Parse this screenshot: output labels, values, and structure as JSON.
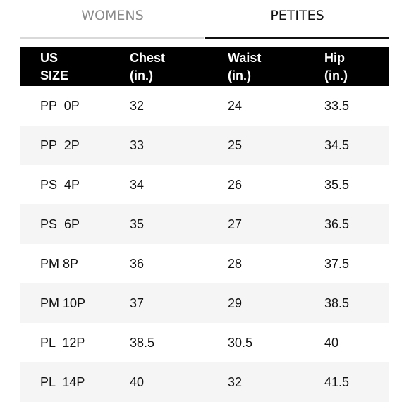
{
  "tabs": [
    {
      "label": "WOMENS"
    },
    {
      "label": "PETITES"
    }
  ],
  "table": {
    "headers": [
      {
        "line1": "US",
        "line2": "SIZE"
      },
      {
        "line1": "Chest",
        "line2": "(in.)"
      },
      {
        "line1": "Waist",
        "line2": "(in.)"
      },
      {
        "line1": "Hip",
        "line2": "(in.)"
      }
    ],
    "rows": [
      {
        "size": "PP  0P",
        "chest": "32",
        "waist": "24",
        "hip": "33.5"
      },
      {
        "size": "PP  2P",
        "chest": "33",
        "waist": "25",
        "hip": "34.5"
      },
      {
        "size": "PS  4P",
        "chest": "34",
        "waist": "26",
        "hip": "35.5"
      },
      {
        "size": "PS  6P",
        "chest": "35",
        "waist": "27",
        "hip": "36.5"
      },
      {
        "size": "PM 8P",
        "chest": "36",
        "waist": "28",
        "hip": "37.5"
      },
      {
        "size": "PM 10P",
        "chest": "37",
        "waist": "29",
        "hip": "38.5"
      },
      {
        "size": "PL  12P",
        "chest": "38.5",
        "waist": "30.5",
        "hip": "40"
      },
      {
        "size": "PL  14P",
        "chest": "40",
        "waist": "32",
        "hip": "41.5"
      }
    ]
  }
}
